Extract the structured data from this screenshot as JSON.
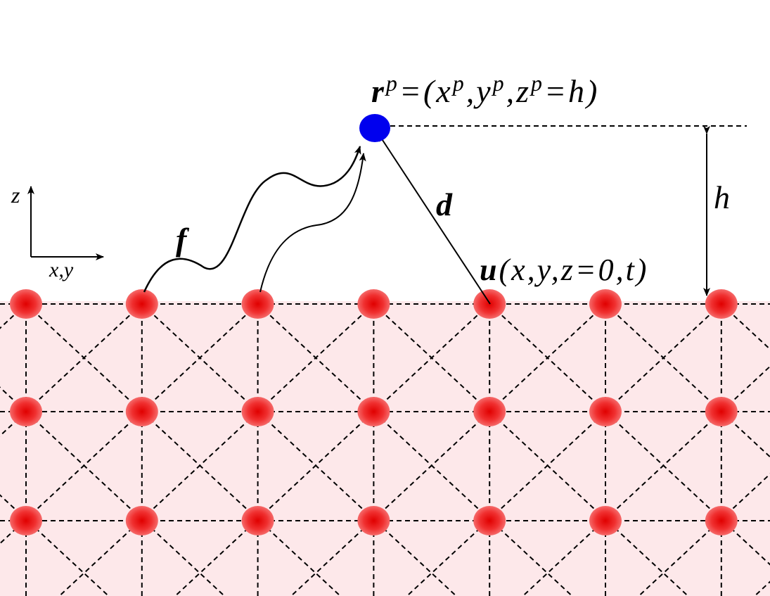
{
  "labels": {
    "position": [
      "r",
      "p",
      "=(x",
      "p",
      ",y",
      "p",
      ",z",
      "p",
      "=h)"
    ],
    "height": "h",
    "distance": "d",
    "force": "f",
    "displacement": [
      "u",
      "(x,y,z=0,t)"
    ],
    "axis_z": "z",
    "axis_xy": "x,y"
  }
}
